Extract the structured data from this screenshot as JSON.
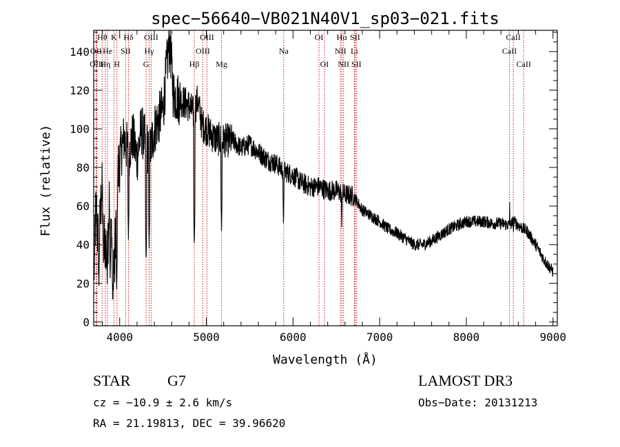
{
  "chart_data": {
    "type": "line",
    "title": "spec−56640−VB021N40V1_sp03−021.fits",
    "xlabel": "Wavelength (Å)",
    "ylabel": "Flux (relative)",
    "xlim": [
      3700,
      9050
    ],
    "ylim": [
      -2,
      151
    ],
    "xticks": [
      4000,
      5000,
      6000,
      7000,
      8000,
      9000
    ],
    "yticks": [
      0,
      20,
      40,
      60,
      80,
      100,
      120,
      140
    ],
    "anchor_points": [
      [
        3700,
        40
      ],
      [
        3730,
        58
      ],
      [
        3760,
        35
      ],
      [
        3790,
        70
      ],
      [
        3820,
        50
      ],
      [
        3850,
        30
      ],
      [
        3880,
        62
      ],
      [
        3910,
        45
      ],
      [
        3940,
        25
      ],
      [
        3970,
        70
      ],
      [
        4000,
        85
      ],
      [
        4050,
        95
      ],
      [
        4100,
        88
      ],
      [
        4150,
        96
      ],
      [
        4200,
        85
      ],
      [
        4250,
        100
      ],
      [
        4300,
        92
      ],
      [
        4350,
        88
      ],
      [
        4400,
        100
      ],
      [
        4450,
        105
      ],
      [
        4500,
        110
      ],
      [
        4550,
        135
      ],
      [
        4580,
        145
      ],
      [
        4620,
        118
      ],
      [
        4700,
        115
      ],
      [
        4800,
        112
      ],
      [
        4850,
        108
      ],
      [
        4900,
        115
      ],
      [
        4950,
        102
      ],
      [
        5000,
        100
      ],
      [
        5100,
        95
      ],
      [
        5200,
        94
      ],
      [
        5300,
        94
      ],
      [
        5400,
        90
      ],
      [
        5500,
        92
      ],
      [
        5600,
        88
      ],
      [
        5700,
        84
      ],
      [
        5800,
        82
      ],
      [
        5900,
        78
      ],
      [
        6000,
        76
      ],
      [
        6100,
        72
      ],
      [
        6200,
        70
      ],
      [
        6300,
        70
      ],
      [
        6400,
        68
      ],
      [
        6500,
        68
      ],
      [
        6600,
        66
      ],
      [
        6700,
        65
      ],
      [
        6800,
        58
      ],
      [
        6900,
        55
      ],
      [
        7000,
        52
      ],
      [
        7100,
        48
      ],
      [
        7200,
        46
      ],
      [
        7300,
        43
      ],
      [
        7400,
        40
      ],
      [
        7500,
        40
      ],
      [
        7600,
        42
      ],
      [
        7700,
        45
      ],
      [
        7800,
        48
      ],
      [
        7900,
        50
      ],
      [
        8000,
        52
      ],
      [
        8100,
        52
      ],
      [
        8200,
        52
      ],
      [
        8300,
        51
      ],
      [
        8400,
        51
      ],
      [
        8500,
        50
      ],
      [
        8550,
        52
      ],
      [
        8600,
        50
      ],
      [
        8700,
        47
      ],
      [
        8800,
        40
      ],
      [
        8900,
        32
      ],
      [
        9000,
        26
      ]
    ],
    "absorption_dips": [
      [
        3705,
        20
      ],
      [
        3760,
        18
      ],
      [
        3815,
        30
      ],
      [
        3890,
        22
      ],
      [
        3920,
        8
      ],
      [
        3965,
        15
      ],
      [
        4101,
        42
      ],
      [
        4305,
        30
      ],
      [
        4340,
        38
      ],
      [
        4861,
        38
      ],
      [
        5175,
        46
      ],
      [
        5890,
        50
      ],
      [
        6563,
        49
      ],
      [
        8544,
        46
      ]
    ],
    "emission_spikes": [
      [
        4560,
        151
      ],
      [
        4585,
        140
      ],
      [
        8500,
        62
      ]
    ],
    "lines": [
      {
        "name": "Hθ",
        "wl": 3798,
        "row": 1
      },
      {
        "name": "OII",
        "wl": 3727,
        "row": 2
      },
      {
        "name": "OIII",
        "wl": 3736,
        "row": 3
      },
      {
        "name": "He",
        "wl": 3860,
        "row": 2
      },
      {
        "name": "Hη",
        "wl": 3835,
        "row": 3
      },
      {
        "name": "K",
        "wl": 3934,
        "row": 1
      },
      {
        "name": "SII",
        "wl": 4069,
        "row": 2
      },
      {
        "name": "H",
        "wl": 3968,
        "row": 3
      },
      {
        "name": "Hδ",
        "wl": 4102,
        "row": 1
      },
      {
        "name": "OIII",
        "wl": 4363,
        "row": 1
      },
      {
        "name": "Hγ",
        "wl": 4340,
        "row": 2
      },
      {
        "name": "G",
        "wl": 4305,
        "row": 3
      },
      {
        "name": "Hβ",
        "wl": 4861,
        "row": 3
      },
      {
        "name": "OIII",
        "wl": 4959,
        "row": 2
      },
      {
        "name": "OIII",
        "wl": 5007,
        "row": 1
      },
      {
        "name": "Mg",
        "wl": 5175,
        "row": 3
      },
      {
        "name": "Na",
        "wl": 5893,
        "row": 2
      },
      {
        "name": "OI",
        "wl": 6300,
        "row": 1
      },
      {
        "name": "OI",
        "wl": 6363,
        "row": 3
      },
      {
        "name": "Hα",
        "wl": 6563,
        "row": 1
      },
      {
        "name": "NII",
        "wl": 6548,
        "row": 2
      },
      {
        "name": "NII",
        "wl": 6583,
        "row": 3
      },
      {
        "name": "SII",
        "wl": 6716,
        "row": 1
      },
      {
        "name": "Li",
        "wl": 6708,
        "row": 2
      },
      {
        "name": "SII",
        "wl": 6731,
        "row": 3
      },
      {
        "name": "CaII",
        "wl": 8542,
        "row": 1
      },
      {
        "name": "CaII",
        "wl": 8498,
        "row": 2
      },
      {
        "name": "CaII",
        "wl": 8662,
        "row": 3
      }
    ]
  },
  "info": {
    "object_class": "STAR",
    "subclass": "G7",
    "survey": "LAMOST DR3",
    "cz": "cz = −10.9 ± 2.6 km/s",
    "obs_date": "Obs−Date: 20131213",
    "coords": "RA =  21.19813, DEC =  39.96620"
  },
  "colors": {
    "spectrum": "#000000",
    "line_markers": "#cc1111",
    "axes": "#000000"
  }
}
